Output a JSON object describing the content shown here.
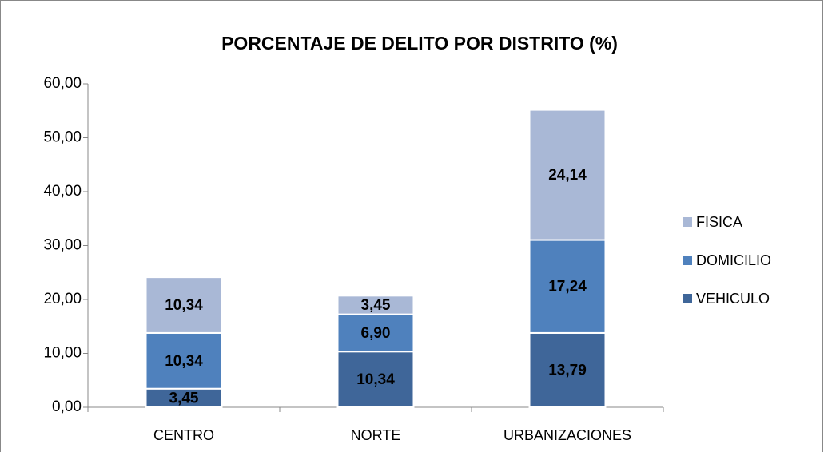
{
  "chart_data": {
    "type": "stacked_bar",
    "title": "PORCENTAJE DE DELITO POR DISTRITO (%)",
    "categories": [
      "CENTRO",
      "NORTE",
      "URBANIZACIONES"
    ],
    "series": [
      {
        "name": "VEHICULO",
        "color": "#3f6699",
        "values": [
          3.45,
          10.34,
          13.79
        ],
        "value_labels": [
          "3,45",
          "10,34",
          "13,79"
        ]
      },
      {
        "name": "DOMICILIO",
        "color": "#4f81bd",
        "values": [
          10.34,
          6.9,
          17.24
        ],
        "value_labels": [
          "10,34",
          "6,90",
          "17,24"
        ]
      },
      {
        "name": "FISICA",
        "color": "#a9b8d6",
        "values": [
          10.34,
          3.45,
          24.14
        ],
        "value_labels": [
          "10,34",
          "3,45",
          "24,14"
        ]
      }
    ],
    "ylim": [
      0,
      60
    ],
    "yticks": [
      {
        "value": 0,
        "label": "0,00"
      },
      {
        "value": 10,
        "label": "10,00"
      },
      {
        "value": 20,
        "label": "20,00"
      },
      {
        "value": 30,
        "label": "30,00"
      },
      {
        "value": 40,
        "label": "40,00"
      },
      {
        "value": 50,
        "label": "50,00"
      },
      {
        "value": 60,
        "label": "60,00"
      }
    ],
    "legend": "right"
  }
}
